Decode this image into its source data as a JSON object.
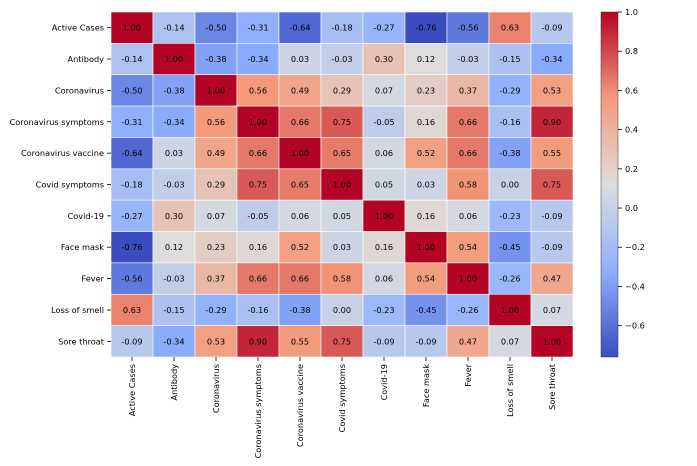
{
  "chart_data": {
    "type": "heatmap",
    "title": "",
    "xlabel": "",
    "ylabel": "",
    "labels": [
      "Active Cases",
      "Antibody",
      "Coronavirus",
      "Coronavirus symptoms",
      "Coronavirus vaccine",
      "Covid symptoms",
      "Covid-19",
      "Face mask",
      "Fever",
      "Loss of smell",
      "Sore throat"
    ],
    "matrix": [
      [
        1.0,
        -0.14,
        -0.5,
        -0.31,
        -0.64,
        -0.18,
        -0.27,
        -0.76,
        -0.56,
        0.63,
        -0.09
      ],
      [
        -0.14,
        1.0,
        -0.38,
        -0.34,
        0.03,
        -0.03,
        0.3,
        0.12,
        -0.03,
        -0.15,
        -0.34
      ],
      [
        -0.5,
        -0.38,
        1.0,
        0.56,
        0.49,
        0.29,
        0.07,
        0.23,
        0.37,
        -0.29,
        0.53
      ],
      [
        -0.31,
        -0.34,
        0.56,
        1.0,
        0.66,
        0.75,
        -0.05,
        0.16,
        0.66,
        -0.16,
        0.9
      ],
      [
        -0.64,
        0.03,
        0.49,
        0.66,
        1.0,
        0.65,
        0.06,
        0.52,
        0.66,
        -0.38,
        0.55
      ],
      [
        -0.18,
        -0.03,
        0.29,
        0.75,
        0.65,
        1.0,
        0.05,
        0.03,
        0.58,
        -0.0,
        0.75
      ],
      [
        -0.27,
        0.3,
        0.07,
        -0.05,
        0.06,
        0.05,
        1.0,
        0.16,
        0.06,
        -0.23,
        -0.09
      ],
      [
        -0.76,
        0.12,
        0.23,
        0.16,
        0.52,
        0.03,
        0.16,
        1.0,
        0.54,
        -0.45,
        -0.09
      ],
      [
        -0.56,
        -0.03,
        0.37,
        0.66,
        0.66,
        0.58,
        0.06,
        0.54,
        1.0,
        -0.26,
        0.47
      ],
      [
        0.63,
        -0.15,
        -0.29,
        -0.16,
        -0.38,
        -0.0,
        -0.23,
        -0.45,
        -0.26,
        1.0,
        0.07
      ],
      [
        -0.09,
        -0.34,
        0.53,
        0.9,
        0.55,
        0.75,
        -0.09,
        -0.09,
        0.47,
        0.07,
        1.0
      ]
    ],
    "colormap": "coolwarm",
    "vmin": -0.76,
    "vmax": 1.0,
    "colorbar_ticks": [
      1.0,
      0.8,
      0.6,
      0.4,
      0.2,
      0.0,
      -0.2,
      -0.4,
      -0.6
    ],
    "colorbar_tick_labels": [
      "1.0",
      "0.8",
      "0.6",
      "0.4",
      "0.2",
      "0.0",
      "−0.2",
      "−0.4",
      "−0.6"
    ],
    "annotations": true,
    "grid": false,
    "legend": "right"
  }
}
